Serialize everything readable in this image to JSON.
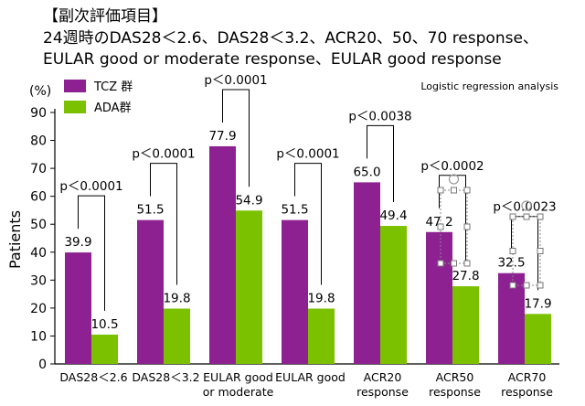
{
  "header": {
    "bracket_title": "【副次評価項目】",
    "line1": "24週時のDAS28＜2.6、DAS28＜3.2、ACR20、50、70 response、",
    "line2": "EULAR good or moderate response、EULAR good response"
  },
  "colors": {
    "tcz": "#8e2191",
    "ada": "#7cc100"
  },
  "chart_data": {
    "type": "bar",
    "note": "Logistic regression analysis",
    "ylabel": "Patients",
    "yunit": "(%)",
    "ylim": [
      0,
      90
    ],
    "yticks": [
      0,
      10,
      20,
      30,
      40,
      50,
      60,
      70,
      80,
      90
    ],
    "legend_position": "top-left",
    "categories": [
      [
        "DAS28＜2.6"
      ],
      [
        "DAS28＜3.2"
      ],
      [
        "EULAR good",
        "or moderate"
      ],
      [
        "EULAR good"
      ],
      [
        "ACR20",
        "response"
      ],
      [
        "ACR50",
        "response"
      ],
      [
        "ACR70",
        "response"
      ]
    ],
    "series": [
      {
        "name": "TCZ 群",
        "values": [
          39.9,
          51.5,
          77.9,
          51.5,
          65.0,
          47.2,
          32.5
        ],
        "labels": [
          "39.9",
          "51.5",
          "77.9",
          "51.5",
          "65.0",
          "47.2",
          "32.5"
        ]
      },
      {
        "name": "ADA群",
        "values": [
          10.5,
          19.8,
          54.9,
          19.8,
          49.4,
          27.8,
          17.9
        ],
        "labels": [
          "10.5",
          "19.8",
          "54.9",
          "19.8",
          "49.4",
          "27.8",
          "17.9"
        ]
      }
    ],
    "pvalues": [
      "p＜0.0001",
      "p＜0.0001",
      "p＜0.0001",
      "p＜0.0001",
      "p＜0.0038",
      "p＜0.0002",
      "p＜0.0023"
    ]
  }
}
